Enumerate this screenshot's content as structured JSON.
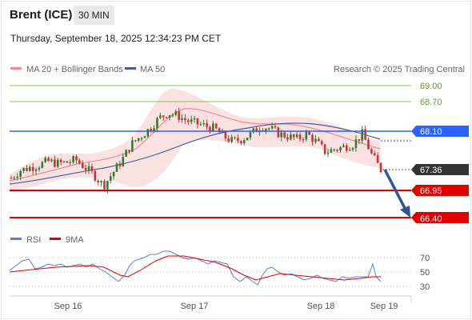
{
  "header": {
    "instrument": "Brent (ICE)",
    "timeframe": "30 MIN",
    "datetime": "Thursday, September 18, 2025 12:34:23 PM CET"
  },
  "legend": {
    "ma20": "MA 20 + Bollinger Bands",
    "ma50": "MA 50",
    "copyright": "Research © 2025 Trading Central",
    "rsi": "RSI",
    "ma9": "9MA"
  },
  "levels": [
    {
      "value": "69.00",
      "kind": "target",
      "color": "#8bc34a"
    },
    {
      "value": "68.70",
      "kind": "target",
      "color": "#8bc34a"
    },
    {
      "value": "68.10",
      "kind": "pivot",
      "color": "#2962ff"
    },
    {
      "value": "67.36",
      "kind": "last",
      "color": "#333333"
    },
    {
      "value": "66.95",
      "kind": "support",
      "color": "#e00000"
    },
    {
      "value": "66.40",
      "kind": "support",
      "color": "#e00000"
    }
  ],
  "rsi_levels": [
    "70",
    "50",
    "30"
  ],
  "x_axis": [
    "Sep 16",
    "Sep 17",
    "Sep 18",
    "Sep 19"
  ],
  "colors": {
    "bull": "#2e7d32",
    "bear": "#d32f2f",
    "ma20": "#f48a8a",
    "ma50": "#3f5f9f",
    "rsi": "#5b7fd6",
    "ma9": "#e00000",
    "arrow": "#2f5597"
  },
  "chart_data": {
    "type": "candlestick",
    "price_axis": [
      69.0,
      68.7,
      68.1,
      67.36,
      66.95,
      66.4
    ],
    "last_price": 67.36,
    "close_path": [
      67.2,
      67.35,
      67.4,
      67.45,
      67.52,
      67.48,
      67.5,
      67.55,
      67.4,
      67.25,
      67.05,
      67.3,
      67.55,
      67.85,
      68.0,
      68.15,
      68.35,
      68.45,
      68.4,
      68.3,
      68.25,
      68.2,
      68.15,
      68.0,
      67.9,
      67.95,
      68.05,
      68.2,
      68.15,
      68.05,
      68.0,
      67.95,
      68.05,
      67.9,
      67.7,
      67.75,
      67.8,
      67.85,
      68.05,
      67.65,
      67.36
    ],
    "projection": "bearish toward 66.40"
  }
}
